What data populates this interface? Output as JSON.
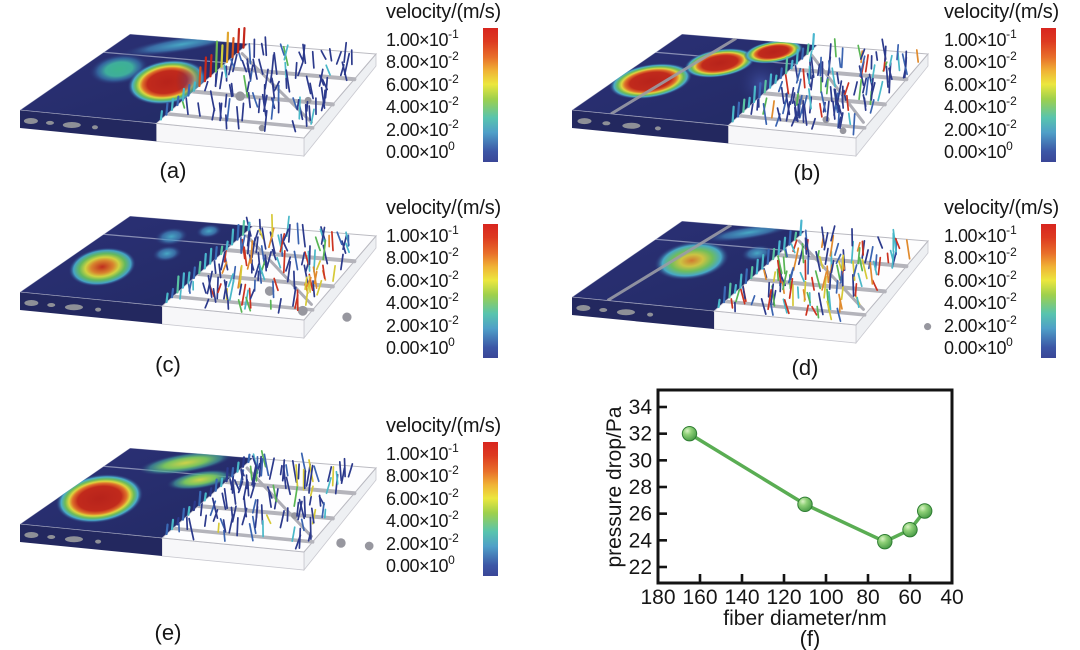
{
  "figure": {
    "panels": [
      {
        "id": "a",
        "label": "(a)"
      },
      {
        "id": "b",
        "label": "(b)"
      },
      {
        "id": "c",
        "label": "(c)"
      },
      {
        "id": "d",
        "label": "(d)"
      },
      {
        "id": "e",
        "label": "(e)"
      },
      {
        "id": "f",
        "label": "(f)"
      }
    ],
    "colorbar": {
      "title": "velocity/(m/s)",
      "ticks": [
        {
          "mantissa": "1.00×10",
          "exponent": "-1"
        },
        {
          "mantissa": "8.00×10",
          "exponent": "-2"
        },
        {
          "mantissa": "6.00×10",
          "exponent": "-2"
        },
        {
          "mantissa": "4.00×10",
          "exponent": "-2"
        },
        {
          "mantissa": "2.00×10",
          "exponent": "-2"
        },
        {
          "mantissa": "0.00×10",
          "exponent": "0"
        }
      ],
      "gradient": [
        {
          "c": "#d8251f",
          "p": 0
        },
        {
          "c": "#dd3a20",
          "p": 10
        },
        {
          "c": "#e8702a",
          "p": 22
        },
        {
          "c": "#f0b335",
          "p": 32
        },
        {
          "c": "#ece73e",
          "p": 42
        },
        {
          "c": "#9ed04c",
          "p": 53
        },
        {
          "c": "#58c4ae",
          "p": 67
        },
        {
          "c": "#4f9fc8",
          "p": 78
        },
        {
          "c": "#3c57a6",
          "p": 92
        },
        {
          "c": "#3a4697",
          "p": 100
        }
      ]
    }
  },
  "chart_data": {
    "type": "line",
    "title": "",
    "xlabel": "fiber diameter/nm",
    "ylabel": "pressure drop/Pa",
    "series": [
      {
        "name": "pressure drop",
        "x": [
          165,
          110,
          72,
          60,
          53
        ],
        "y": [
          32,
          26.7,
          23.9,
          24.8,
          26.2
        ]
      }
    ],
    "xticks": [
      180,
      160,
      140,
      120,
      100,
      80,
      60,
      40
    ],
    "yticks": [
      22,
      24,
      26,
      28,
      30,
      32,
      34
    ],
    "xlim": [
      180,
      40
    ],
    "ylim": [
      21,
      35.3
    ],
    "x_axis_reversed": true,
    "grid": false,
    "legend": false,
    "line_color": "#5aad53",
    "marker_fill": "#54a84e",
    "marker_edge_color": "#2e7d32",
    "axis_color": "#141414"
  }
}
